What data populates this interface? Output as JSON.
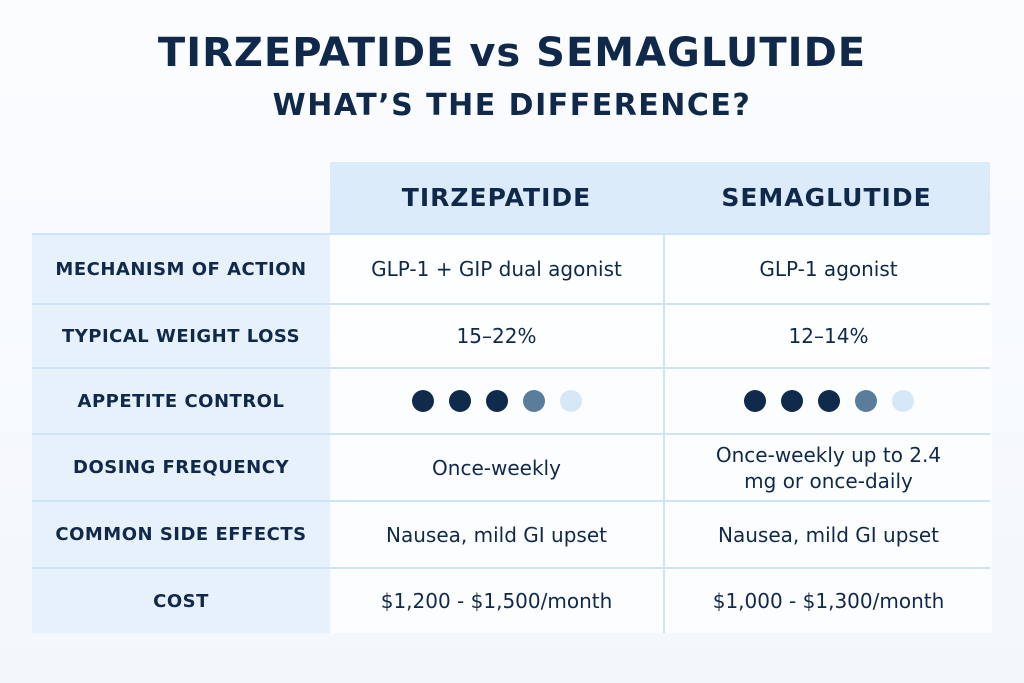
{
  "title": "TIRZEPATIDE vs SEMAGLUTIDE",
  "subtitle": "WHAT’S THE DIFFERENCE?",
  "columns": [
    "TIRZEPATIDE",
    "SEMAGLUTIDE"
  ],
  "colors": {
    "dot_full": "#0f2a4a",
    "dot_partial": "#5a7d9c",
    "dot_empty": "#d6e8f8"
  },
  "rows": [
    {
      "label": "MECHANISM OF ACTION",
      "values": [
        "GLP-1 + GIP dual agonist",
        "GLP-1 agonist"
      ]
    },
    {
      "label": "TYPICAL WEIGHT LOSS",
      "values": [
        "15–22%",
        "12–14%"
      ]
    },
    {
      "label": "APPETITE CONTROL",
      "ratings": [
        [
          "full",
          "full",
          "full",
          "partial",
          "empty"
        ],
        [
          "full",
          "full",
          "full",
          "partial",
          "empty"
        ]
      ]
    },
    {
      "label": "DOSING FREQUENCY",
      "values": [
        "Once-weekly",
        "Once-weekly up to 2.4 mg or once-daily"
      ]
    },
    {
      "label": "COMMON SIDE EFFECTS",
      "values": [
        "Nausea, mild GI upset",
        "Nausea, mild GI upset"
      ]
    },
    {
      "label": "COST",
      "values": [
        "$1,200 - $1,500/month",
        "$1,000 - $1,300/month"
      ]
    }
  ]
}
